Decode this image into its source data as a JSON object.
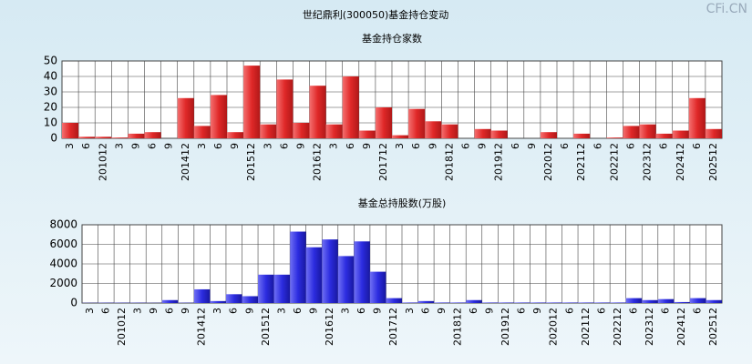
{
  "title": "世纪鼎利(300050)基金持仓变动",
  "watermark": "CFi.CN",
  "chart_data": [
    {
      "type": "bar",
      "title": "基金持仓家数",
      "color": "#e02828",
      "categories": [
        "3",
        "6",
        "201012",
        "3",
        "9",
        "6",
        "9",
        "201412",
        "3",
        "6",
        "9",
        "201512",
        "3",
        "6",
        "9",
        "201612",
        "3",
        "6",
        "9",
        "201712",
        "3",
        "6",
        "9",
        "201812",
        "6",
        "9",
        "201912",
        "6",
        "9",
        "202012",
        "6",
        "202112",
        "6",
        "202212",
        "6",
        "202312",
        "6",
        "202412",
        "6",
        "202512"
      ],
      "values": [
        10,
        1,
        1,
        0.5,
        3,
        4,
        0,
        26,
        8,
        28,
        4,
        47,
        9,
        38,
        10,
        34,
        9,
        40,
        5,
        20,
        2,
        19,
        11,
        9,
        0,
        6,
        5,
        0,
        0,
        4,
        0,
        3,
        0,
        0.5,
        8,
        9,
        3,
        5,
        26,
        6
      ],
      "ylim": [
        0,
        50
      ],
      "yticks": [
        0,
        10,
        20,
        30,
        40,
        50
      ],
      "grid": true
    },
    {
      "type": "bar",
      "title": "基金总持股数(万股)",
      "color": "#2c2ce0",
      "categories": [
        "3",
        "6",
        "201012",
        "3",
        "9",
        "6",
        "9",
        "201412",
        "3",
        "6",
        "9",
        "201512",
        "3",
        "6",
        "9",
        "201612",
        "3",
        "6",
        "9",
        "201712",
        "3",
        "6",
        "9",
        "201812",
        "6",
        "9",
        "201912",
        "6",
        "9",
        "202012",
        "6",
        "202112",
        "6",
        "202212",
        "6",
        "202312",
        "6",
        "202412",
        "6",
        "202512"
      ],
      "values": [
        20,
        30,
        30,
        30,
        20,
        300,
        30,
        1400,
        200,
        900,
        700,
        2900,
        2900,
        7300,
        5700,
        6500,
        4800,
        6300,
        3200,
        500,
        50,
        200,
        50,
        50,
        300,
        50,
        50,
        50,
        50,
        50,
        50,
        50,
        50,
        50,
        500,
        300,
        400,
        100,
        500,
        300
      ],
      "ylim": [
        0,
        8000
      ],
      "yticks": [
        0,
        2000,
        4000,
        6000,
        8000
      ],
      "grid": true
    }
  ]
}
